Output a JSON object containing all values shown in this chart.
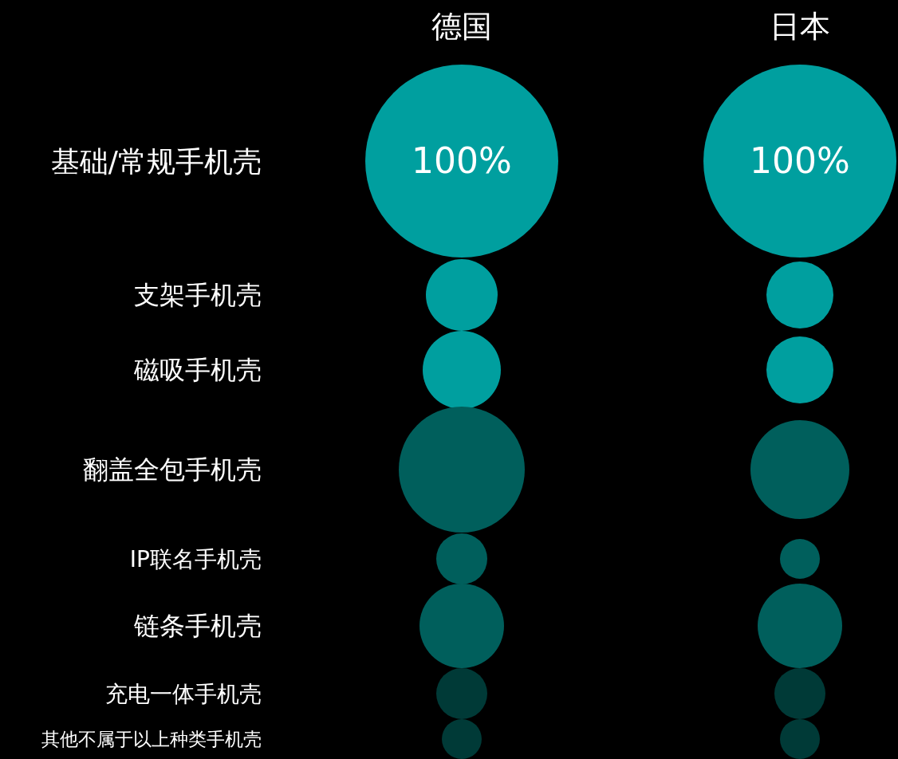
{
  "chart_data": {
    "type": "other",
    "categories": [
      "德国",
      "日本"
    ],
    "y_categories": [
      "基础/常规手机壳",
      "支架手机壳",
      "磁吸手机壳",
      "翻盖全包手机壳",
      "IP联名手机壳",
      "链条手机壳",
      "充电一体手机壳",
      "其他不属于以上种类手机壳"
    ],
    "values": [
      100,
      100
    ],
    "value_labels": [
      "100%",
      "100%"
    ]
  }
}
